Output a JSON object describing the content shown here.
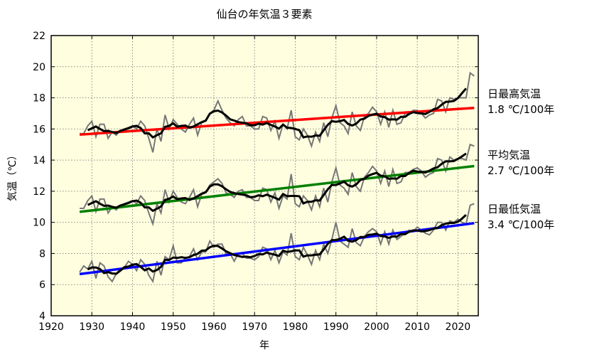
{
  "chart_data": {
    "type": "line",
    "title": "仙台の年気温３要素",
    "xlabel": "年",
    "ylabel": "気温（℃）",
    "xlim": [
      1920,
      2025
    ],
    "ylim": [
      4,
      22
    ],
    "x_ticks": [
      "1920",
      "1930",
      "1940",
      "1950",
      "1960",
      "1970",
      "1980",
      "1990",
      "2000",
      "2010",
      "2020"
    ],
    "y_ticks": [
      "4",
      "6",
      "8",
      "10",
      "12",
      "14",
      "16",
      "18",
      "20",
      "22"
    ],
    "grid": true,
    "background": "#ffffe0",
    "x_start": 1927,
    "moving_average_window": 5,
    "series": [
      {
        "name": "日最高気温",
        "trend_label": "1.8 ℃/100年",
        "trend_color": "#ff0000",
        "values": [
          15.7,
          15.7,
          16.2,
          16.5,
          15.5,
          16.3,
          16.3,
          15.4,
          15.8,
          15.6,
          15.9,
          16.0,
          16.1,
          16.2,
          16.0,
          16.5,
          16.2,
          15.4,
          14.5,
          16.0,
          15.2,
          16.9,
          16.0,
          16.6,
          16.3,
          16.0,
          15.8,
          16.3,
          16.7,
          15.6,
          16.4,
          16.5,
          17.0,
          17.2,
          17.8,
          17.2,
          16.7,
          16.4,
          16.2,
          16.6,
          16.8,
          16.2,
          16.2,
          16.0,
          16.0,
          16.8,
          16.7,
          15.9,
          16.5,
          15.4,
          16.3,
          16.0,
          17.2,
          15.5,
          15.3,
          16.0,
          15.6,
          14.9,
          15.8,
          15.2,
          16.4,
          15.5,
          16.7,
          17.5,
          16.4,
          16.2,
          15.7,
          17.1,
          16.2,
          15.9,
          16.8,
          17.0,
          17.4,
          17.1,
          16.3,
          17.1,
          16.1,
          17.2,
          16.3,
          16.4,
          17.0,
          17.0,
          17.2,
          17.2,
          17.0,
          16.7,
          16.9,
          17.0,
          17.9,
          17.8,
          17.1,
          18.0,
          17.9,
          18.0,
          18.0,
          18.0,
          19.6,
          19.4
        ]
      },
      {
        "name": "平均気温",
        "trend_label": "2.7 ℃/100年",
        "trend_color": "#008000",
        "values": [
          10.9,
          10.9,
          11.4,
          11.7,
          10.7,
          11.5,
          11.5,
          10.6,
          11.0,
          10.8,
          11.1,
          11.2,
          11.3,
          11.4,
          11.2,
          11.7,
          11.4,
          10.6,
          9.9,
          11.2,
          10.6,
          12.1,
          11.3,
          12.0,
          11.6,
          11.3,
          11.2,
          11.6,
          12.1,
          11.0,
          11.8,
          11.9,
          12.4,
          12.6,
          12.8,
          12.5,
          11.9,
          11.8,
          11.6,
          12.0,
          12.1,
          11.6,
          11.6,
          11.4,
          11.4,
          12.2,
          12.1,
          11.3,
          11.9,
          10.9,
          11.7,
          11.5,
          13.1,
          11.2,
          11.0,
          11.7,
          11.4,
          10.8,
          11.7,
          11.0,
          12.2,
          11.3,
          12.6,
          13.5,
          12.4,
          12.2,
          11.8,
          13.2,
          12.3,
          12.0,
          12.9,
          13.2,
          13.6,
          13.3,
          12.5,
          13.3,
          12.3,
          13.4,
          12.5,
          12.6,
          13.2,
          13.2,
          13.4,
          13.5,
          13.3,
          12.9,
          13.1,
          13.2,
          14.1,
          14.0,
          13.3,
          14.2,
          14.0,
          14.1,
          14.1,
          14.0,
          15.0,
          14.9
        ]
      },
      {
        "name": "日最低気温",
        "trend_label": "3.4 ℃/100年",
        "trend_color": "#0000ff",
        "values": [
          6.8,
          7.2,
          7.0,
          7.5,
          6.4,
          7.4,
          7.2,
          6.5,
          6.2,
          6.7,
          7.0,
          7.1,
          7.5,
          7.3,
          6.9,
          7.6,
          7.3,
          6.6,
          6.2,
          7.5,
          6.6,
          7.8,
          7.6,
          8.5,
          7.4,
          7.4,
          7.7,
          7.8,
          8.3,
          7.6,
          8.1,
          8.1,
          8.8,
          8.4,
          8.6,
          8.6,
          8.0,
          8.0,
          7.5,
          8.0,
          8.0,
          7.7,
          7.7,
          7.6,
          7.8,
          8.4,
          8.3,
          7.6,
          8.2,
          7.4,
          8.1,
          7.9,
          9.3,
          7.8,
          7.6,
          8.4,
          7.9,
          7.3,
          8.2,
          7.6,
          8.6,
          8.0,
          8.9,
          10.0,
          8.8,
          8.6,
          8.4,
          9.6,
          8.7,
          8.5,
          9.1,
          9.4,
          9.6,
          9.4,
          8.6,
          9.4,
          8.6,
          9.5,
          8.9,
          9.1,
          9.3,
          9.5,
          9.4,
          9.7,
          9.5,
          9.3,
          9.2,
          9.5,
          10.0,
          10.0,
          9.5,
          10.1,
          10.0,
          10.2,
          10.0,
          9.9,
          11.1,
          11.2
        ]
      }
    ]
  }
}
